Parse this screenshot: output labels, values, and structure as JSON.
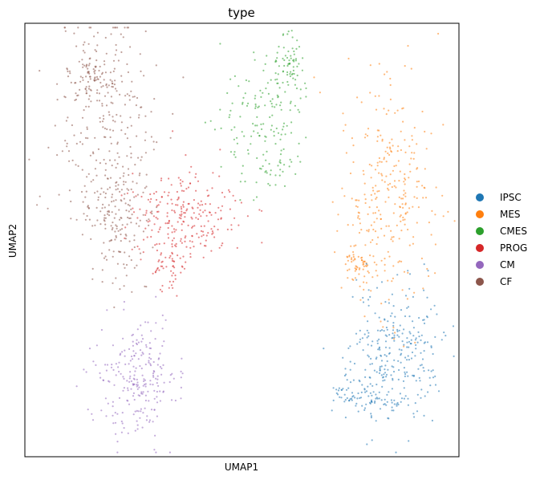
{
  "chart_data": {
    "type": "scatter",
    "title": "type",
    "xlabel": "UMAP1",
    "ylabel": "UMAP2",
    "xticks": [],
    "yticks": [],
    "grid": false,
    "legend_position": "right",
    "categories": [
      {
        "name": "IPSC",
        "color": "#1f77b4"
      },
      {
        "name": "MES",
        "color": "#ff7f0e"
      },
      {
        "name": "CMES",
        "color": "#2ca02c"
      },
      {
        "name": "PROG",
        "color": "#d62728"
      },
      {
        "name": "CM",
        "color": "#9467bd"
      },
      {
        "name": "CF",
        "color": "#8c564b"
      }
    ],
    "clusters": [
      {
        "category": "CF",
        "blobs": [
          [
            0.19,
            0.24,
            0.14,
            0.35,
            260
          ],
          [
            0.21,
            0.45,
            0.08,
            0.18,
            140
          ],
          [
            0.16,
            0.12,
            0.06,
            0.05,
            80
          ]
        ]
      },
      {
        "category": "PROG",
        "blobs": [
          [
            0.37,
            0.44,
            0.13,
            0.11,
            230
          ],
          [
            0.33,
            0.56,
            0.06,
            0.07,
            60
          ]
        ]
      },
      {
        "category": "CM",
        "blobs": [
          [
            0.26,
            0.82,
            0.1,
            0.16,
            240
          ]
        ]
      },
      {
        "category": "CMES",
        "blobs": [
          [
            0.56,
            0.24,
            0.12,
            0.18,
            170
          ],
          [
            0.61,
            0.09,
            0.04,
            0.07,
            60
          ]
        ]
      },
      {
        "category": "MES",
        "blobs": [
          [
            0.84,
            0.4,
            0.12,
            0.29,
            290
          ],
          [
            0.77,
            0.55,
            0.04,
            0.06,
            60
          ]
        ]
      },
      {
        "category": "IPSC",
        "blobs": [
          [
            0.85,
            0.77,
            0.12,
            0.18,
            290
          ],
          [
            0.78,
            0.86,
            0.08,
            0.04,
            70
          ]
        ]
      }
    ]
  }
}
